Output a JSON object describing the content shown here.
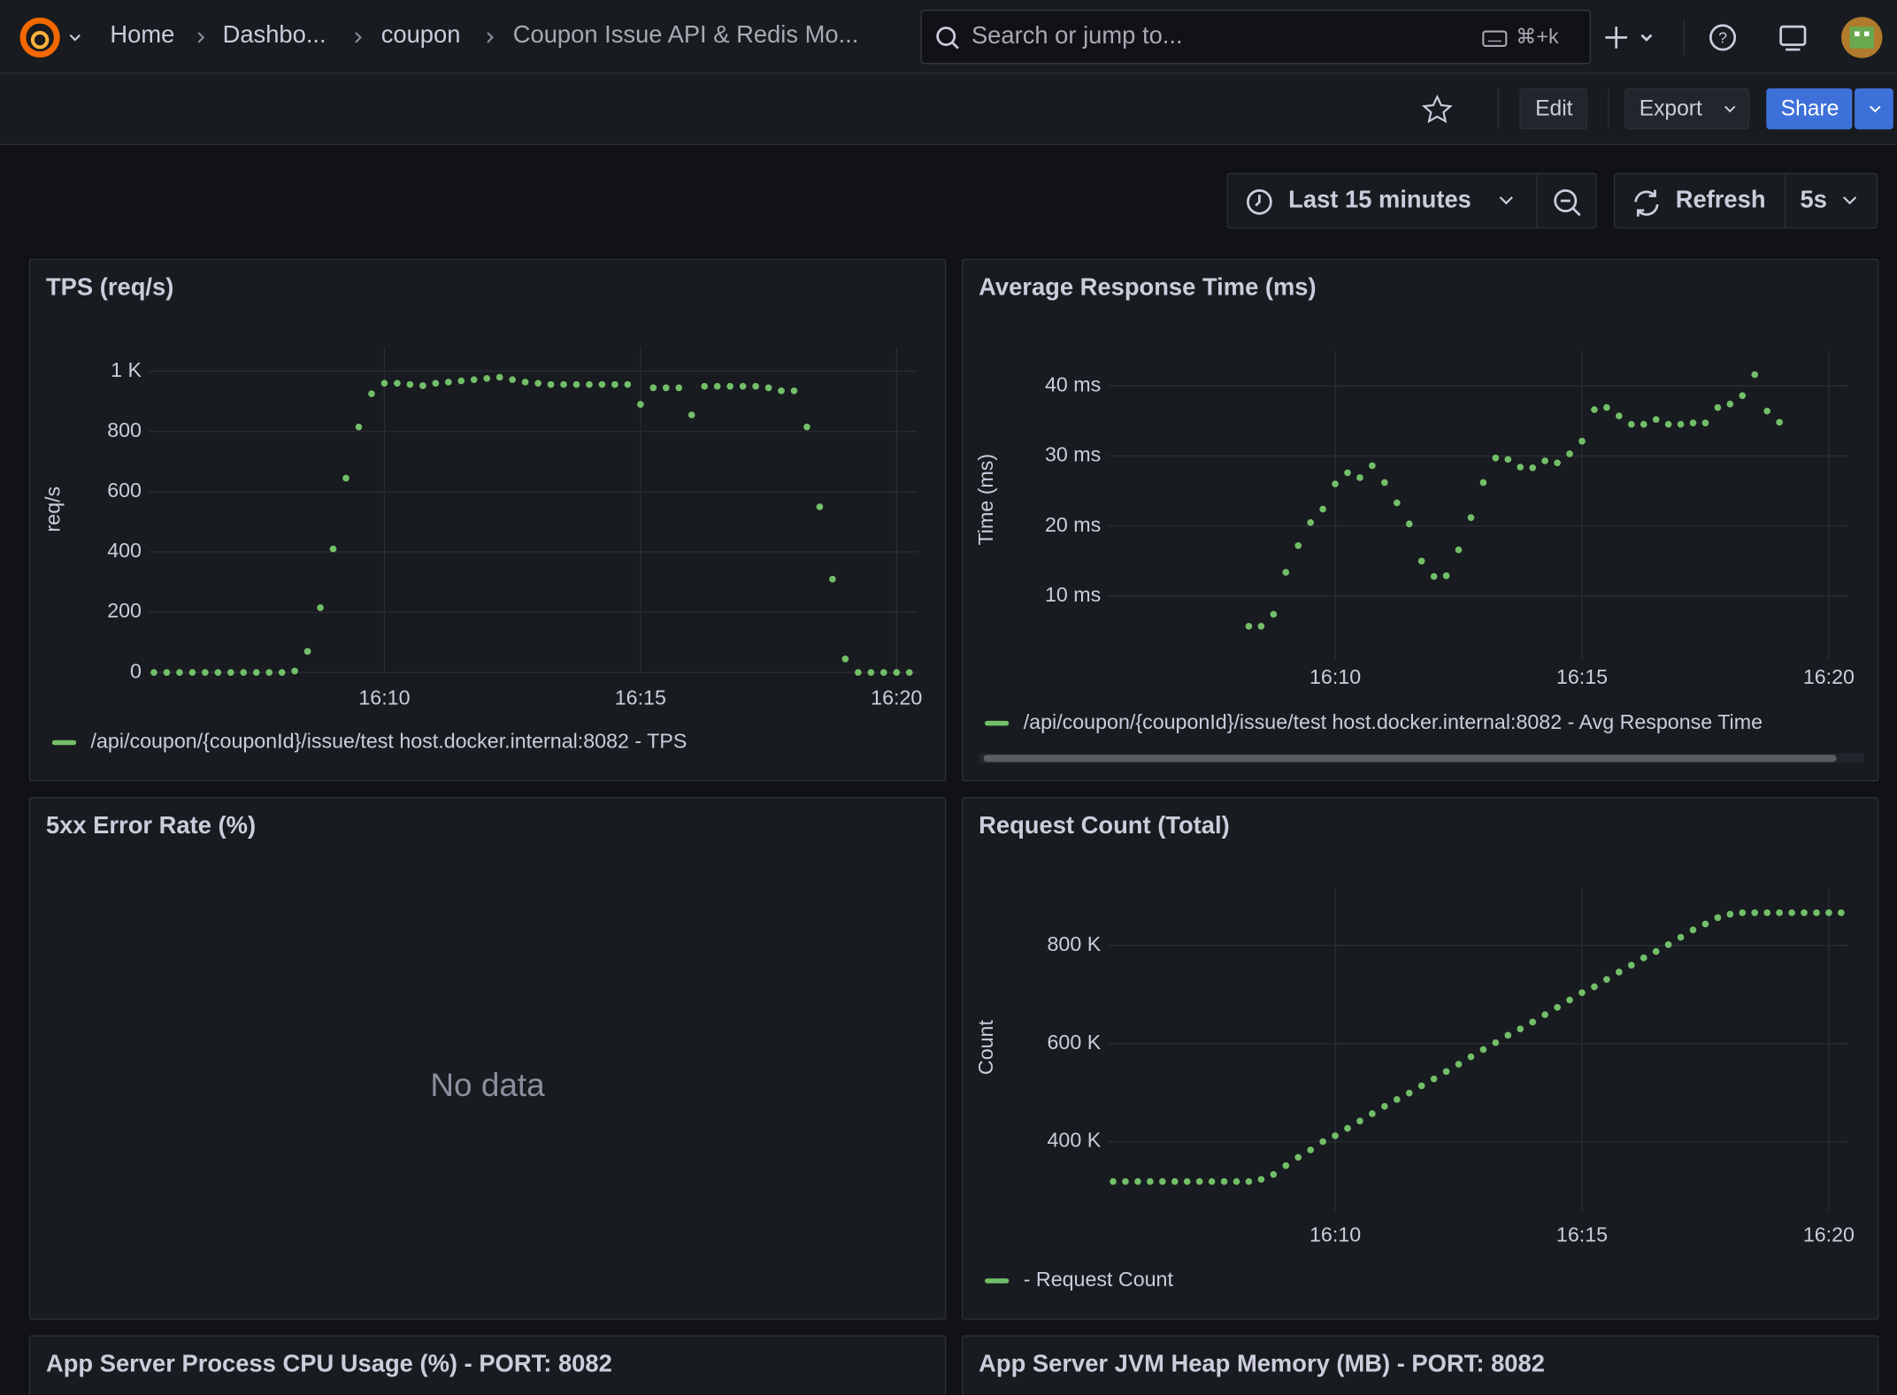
{
  "header": {
    "breadcrumbs": [
      "Home",
      "Dashbo...",
      "coupon",
      "Coupon Issue API & Redis Mo..."
    ],
    "search": "Search or jump to...",
    "shortcut": "⌘+k"
  },
  "toolbar": {
    "edit": "Edit",
    "export": "Export",
    "share": "Share",
    "time_range": "Last 15 minutes",
    "refresh": "Refresh",
    "interval": "5s"
  },
  "chart_data": [
    {
      "type": "scatter",
      "title": "TPS (req/s)",
      "ylabel": "req/s",
      "grid": true,
      "x": [
        965.5,
        965.75,
        966,
        966.25,
        966.5,
        966.75,
        967,
        967.25,
        967.5,
        967.75,
        968,
        968.25,
        968.5,
        968.75,
        969,
        969.25,
        969.5,
        969.75,
        970,
        970.25,
        970.5,
        970.75,
        971,
        971.25,
        971.5,
        971.75,
        972,
        972.25,
        972.5,
        972.75,
        973,
        973.25,
        973.5,
        973.75,
        974,
        974.25,
        974.5,
        974.75,
        975,
        975.25,
        975.5,
        975.75,
        976,
        976.25,
        976.5,
        976.75,
        977,
        977.25,
        977.5,
        977.75,
        978,
        978.25,
        978.5,
        978.75,
        979,
        979.25,
        979.5,
        979.75,
        980,
        980.25
      ],
      "series": [
        {
          "name": "/api/coupon/{couponId}/issue/test host.docker.internal:8082 - TPS",
          "color": "#73bf69",
          "values": [
            0,
            0,
            0,
            0,
            0,
            0,
            0,
            0,
            0,
            0,
            0,
            5,
            70,
            215,
            410,
            645,
            815,
            925,
            960,
            960,
            956,
            952,
            960,
            964,
            968,
            972,
            976,
            980,
            972,
            964,
            960,
            956,
            956,
            956,
            956,
            956,
            956,
            956,
            890,
            945,
            945,
            945,
            855,
            950,
            950,
            950,
            950,
            950,
            945,
            935,
            935,
            815,
            550,
            310,
            45,
            0,
            0,
            0,
            0,
            0
          ]
        }
      ],
      "xlim": [
        965.4,
        980.4
      ],
      "xticks": [
        {
          "value": 970,
          "label": "16:10"
        },
        {
          "value": 975,
          "label": "16:15"
        },
        {
          "value": 980,
          "label": "16:20"
        }
      ],
      "ylim": [
        0,
        1080
      ],
      "yticks": [
        0,
        200,
        400,
        600,
        800,
        {
          "value": 1000,
          "label": "1 K"
        }
      ]
    },
    {
      "type": "scatter",
      "title": "Average Response Time (ms)",
      "ylabel": "Time (ms)",
      "grid": true,
      "x": [
        968.25,
        968.5,
        968.75,
        969,
        969.25,
        969.5,
        969.75,
        970,
        970.25,
        970.5,
        970.75,
        971,
        971.25,
        971.5,
        971.75,
        972,
        972.25,
        972.5,
        972.75,
        973,
        973.25,
        973.5,
        973.75,
        974,
        974.25,
        974.5,
        974.75,
        975,
        975.25,
        975.5,
        975.75,
        976,
        976.25,
        976.5,
        976.75,
        977,
        977.25,
        977.5,
        977.75,
        978,
        978.25,
        978.5,
        978.75,
        979
      ],
      "series": [
        {
          "name": "/api/coupon/{couponId}/issue/test host.docker.internal:8082 - Avg Response Time",
          "color": "#73bf69",
          "values": [
            5.7,
            5.7,
            7.4,
            13.4,
            17.2,
            20.5,
            22.4,
            26,
            27.6,
            26.9,
            28.6,
            26.2,
            23.3,
            20.3,
            15,
            12.8,
            12.9,
            16.6,
            21.2,
            26.2,
            29.7,
            29.5,
            28.4,
            28.3,
            29.3,
            29,
            30.3,
            32.1,
            36.6,
            36.9,
            35.7,
            34.5,
            34.5,
            35.2,
            34.5,
            34.5,
            34.7,
            34.7,
            36.9,
            37.4,
            38.6,
            41.6,
            36.4,
            34.8
          ]
        }
      ],
      "xlim": [
        965.4,
        980.4
      ],
      "xticks": [
        {
          "value": 970,
          "label": "16:10"
        },
        {
          "value": 975,
          "label": "16:15"
        },
        {
          "value": 980,
          "label": "16:20"
        }
      ],
      "ylim": [
        1,
        45
      ],
      "yticks": [
        {
          "value": 10,
          "label": "10 ms"
        },
        {
          "value": 20,
          "label": "20 ms"
        },
        {
          "value": 30,
          "label": "30 ms"
        },
        {
          "value": 40,
          "label": "40 ms"
        }
      ]
    },
    {
      "type": "empty",
      "title": "5xx Error Rate (%)",
      "message": "No data"
    },
    {
      "type": "scatter",
      "title": "Request Count (Total)",
      "ylabel": "Count",
      "grid": true,
      "x": [
        965.5,
        965.75,
        966,
        966.25,
        966.5,
        966.75,
        967,
        967.25,
        967.5,
        967.75,
        968,
        968.25,
        968.5,
        968.75,
        969,
        969.25,
        969.5,
        969.75,
        970,
        970.25,
        970.5,
        970.75,
        971,
        971.25,
        971.5,
        971.75,
        972,
        972.25,
        972.5,
        972.75,
        973,
        973.25,
        973.5,
        973.75,
        974,
        974.25,
        974.5,
        974.75,
        975,
        975.25,
        975.5,
        975.75,
        976,
        976.25,
        976.5,
        976.75,
        977,
        977.25,
        977.5,
        977.75,
        978,
        978.25,
        978.5,
        978.75,
        979,
        979.25,
        979.5,
        979.75,
        980,
        980.25
      ],
      "series": [
        {
          "name": "- Request Count",
          "color": "#73bf69",
          "values": [
            318500,
            318500,
            318500,
            318500,
            318500,
            318500,
            318500,
            318500,
            318500,
            318500,
            318500,
            318500,
            323000,
            333000,
            351000,
            368000,
            383000,
            400000,
            412000,
            427000,
            442000,
            457000,
            472000,
            486000,
            499000,
            514000,
            528000,
            543000,
            558000,
            573000,
            588000,
            602000,
            617000,
            630000,
            644000,
            659000,
            674000,
            689000,
            704000,
            716000,
            731000,
            746000,
            760000,
            775000,
            788000,
            802000,
            817000,
            832000,
            844000,
            857000,
            864000,
            867000,
            867000,
            867000,
            867000,
            867000,
            867000,
            867000,
            867000,
            867000
          ]
        }
      ],
      "xlim": [
        965.4,
        980.4
      ],
      "xticks": [
        {
          "value": 970,
          "label": "16:10"
        },
        {
          "value": 975,
          "label": "16:15"
        },
        {
          "value": 980,
          "label": "16:20"
        }
      ],
      "ylim": [
        259000,
        918000
      ],
      "yticks": [
        {
          "value": 400000,
          "label": "400 K"
        },
        {
          "value": 600000,
          "label": "600 K"
        },
        {
          "value": 800000,
          "label": "800 K"
        }
      ]
    }
  ],
  "panels": [
    {
      "title": "App Server Process CPU Usage (%) - PORT: 8082"
    },
    {
      "title": "App Server JVM Heap Memory (MB) - PORT: 8082"
    }
  ]
}
